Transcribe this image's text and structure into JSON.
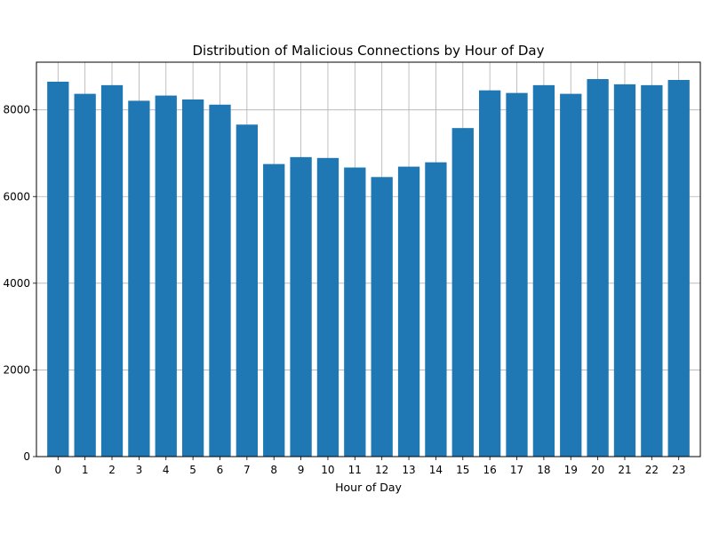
{
  "chart_data": {
    "type": "bar",
    "title": "Distribution of Malicious Connections by Hour of Day",
    "xlabel": "Hour of Day",
    "ylabel": "",
    "categories": [
      "0",
      "1",
      "2",
      "3",
      "4",
      "5",
      "6",
      "7",
      "8",
      "9",
      "10",
      "11",
      "12",
      "13",
      "14",
      "15",
      "16",
      "17",
      "18",
      "19",
      "20",
      "21",
      "22",
      "23"
    ],
    "values": [
      8650,
      8370,
      8570,
      8210,
      8330,
      8240,
      8120,
      7660,
      6750,
      6910,
      6890,
      6670,
      6450,
      6690,
      6790,
      7580,
      8450,
      8390,
      8570,
      8370,
      8710,
      8590,
      8570,
      8690
    ],
    "ylim": [
      0,
      9100
    ],
    "yticks": [
      "0",
      "2000",
      "4000",
      "6000",
      "8000"
    ],
    "grid": true,
    "bar_color": "#1f77b4"
  }
}
